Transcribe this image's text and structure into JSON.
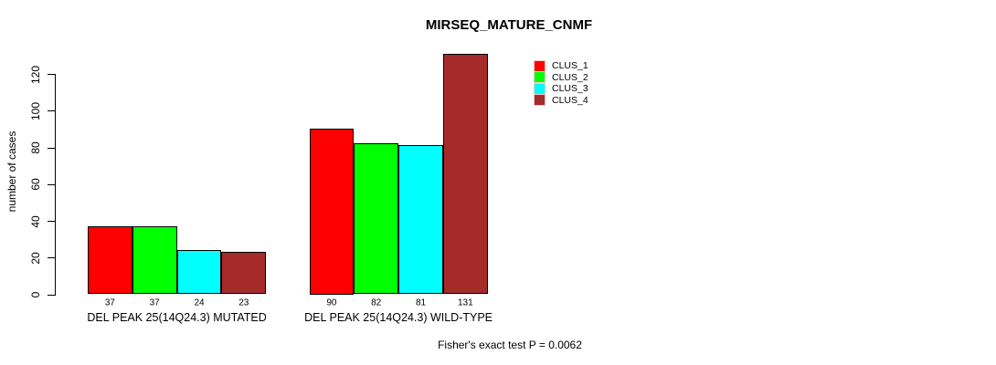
{
  "chart_data": {
    "type": "bar",
    "title": "MIRSEQ_MATURE_CNMF",
    "xlabel": "",
    "ylabel": "number of cases",
    "ylim": [
      0,
      131
    ],
    "yticks": [
      0,
      20,
      40,
      60,
      80,
      100,
      120
    ],
    "grid": false,
    "legend_position": "top-right",
    "categories": [
      "DEL PEAK 25(14Q24.3) MUTATED",
      "DEL PEAK 25(14Q24.3) WILD-TYPE"
    ],
    "series": [
      {
        "name": "CLUS_1",
        "color": "#ff0000",
        "values": [
          37,
          90
        ]
      },
      {
        "name": "CLUS_2",
        "color": "#00ff00",
        "values": [
          37,
          82
        ]
      },
      {
        "name": "CLUS_3",
        "color": "#00ffff",
        "values": [
          24,
          81
        ]
      },
      {
        "name": "CLUS_4",
        "color": "#a52a2a",
        "values": [
          23,
          131
        ]
      }
    ],
    "bar_value_labels": [
      [
        37,
        37,
        24,
        23
      ],
      [
        90,
        82,
        81,
        131
      ]
    ],
    "annotation": "Fisher's exact test P = 0.0062",
    "colors": {
      "axis": "#000000",
      "background": "#ffffff",
      "bar_border": "#000000"
    }
  }
}
